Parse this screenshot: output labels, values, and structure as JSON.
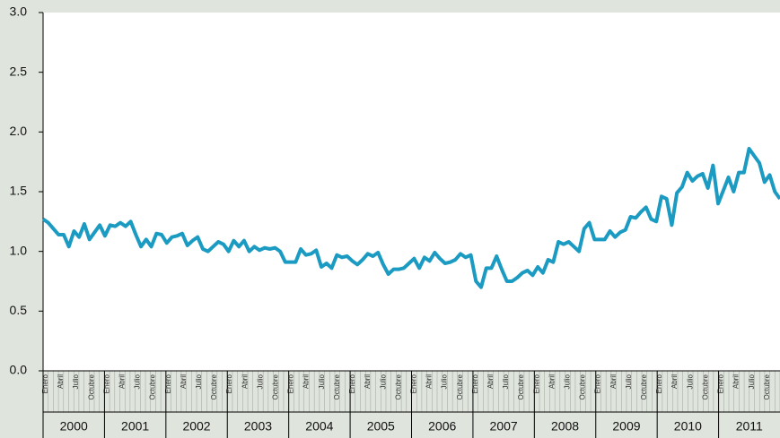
{
  "chart_data": {
    "type": "line",
    "categories": [
      "Enero",
      null,
      null,
      "Abril",
      null,
      null,
      "Julio",
      null,
      null,
      "Octubre",
      null,
      null,
      "Enero",
      null,
      null,
      "Abril",
      null,
      null,
      "Julio",
      null,
      null,
      "Octubre",
      null,
      null,
      "Enero",
      null,
      null,
      "Abril",
      null,
      null,
      "Julio",
      null,
      null,
      "Octubre",
      null,
      null,
      "Enero",
      null,
      null,
      "Abril",
      null,
      null,
      "Julio",
      null,
      null,
      "Octubre",
      null,
      null,
      "Enero",
      null,
      null,
      "Abril",
      null,
      null,
      "Julio",
      null,
      null,
      "Octubre",
      null,
      null,
      "Enero",
      null,
      null,
      "Abril",
      null,
      null,
      "Julio",
      null,
      null,
      "Octubre",
      null,
      null,
      "Enero",
      null,
      null,
      "Abril",
      null,
      null,
      "Julio",
      null,
      null,
      "Octubre",
      null,
      null,
      "Enero",
      null,
      null,
      "Abril",
      null,
      null,
      "Julio",
      null,
      null,
      "Octubre",
      null,
      null,
      "Enero",
      null,
      null,
      "Abril",
      null,
      null,
      "Julio",
      null,
      null,
      "Octubre",
      null,
      null,
      "Enero",
      null,
      null,
      "Abril",
      null,
      null,
      "Julio",
      null,
      null,
      "Octubre",
      null,
      null,
      "Enero",
      null,
      null,
      "Abril",
      null,
      null,
      "Julio",
      null,
      null,
      "Octubre",
      null,
      null,
      "Enero",
      null,
      null,
      "Abril",
      null,
      null,
      "Julio",
      null,
      null,
      "Octubre",
      null,
      null
    ],
    "year_groups": [
      "2000",
      "2001",
      "2002",
      "2003",
      "2004",
      "2005",
      "2006",
      "2007",
      "2008",
      "2009",
      "2010",
      "2011"
    ],
    "series": [
      {
        "color": "#1b9bc2",
        "values": [
          1.27,
          1.24,
          1.19,
          1.14,
          1.14,
          1.04,
          1.17,
          1.12,
          1.23,
          1.1,
          1.16,
          1.22,
          1.13,
          1.22,
          1.21,
          1.24,
          1.21,
          1.25,
          1.14,
          1.04,
          1.1,
          1.04,
          1.15,
          1.14,
          1.07,
          1.12,
          1.13,
          1.15,
          1.05,
          1.09,
          1.12,
          1.02,
          1.0,
          1.04,
          1.08,
          1.06,
          1.0,
          1.09,
          1.04,
          1.09,
          1.0,
          1.04,
          1.01,
          1.03,
          1.02,
          1.03,
          1.0,
          0.91,
          0.91,
          0.91,
          1.02,
          0.97,
          0.98,
          1.01,
          0.87,
          0.9,
          0.86,
          0.97,
          0.95,
          0.96,
          0.92,
          0.89,
          0.93,
          0.98,
          0.96,
          0.99,
          0.89,
          0.81,
          0.85,
          0.85,
          0.86,
          0.9,
          0.94,
          0.86,
          0.95,
          0.92,
          0.99,
          0.94,
          0.9,
          0.91,
          0.93,
          0.98,
          0.95,
          0.97,
          0.75,
          0.7,
          0.86,
          0.86,
          0.96,
          0.85,
          0.75,
          0.75,
          0.78,
          0.82,
          0.84,
          0.8,
          0.87,
          0.82,
          0.93,
          0.91,
          1.08,
          1.06,
          1.08,
          1.04,
          1.0,
          1.19,
          1.24,
          1.1,
          1.1,
          1.1,
          1.17,
          1.12,
          1.16,
          1.18,
          1.29,
          1.28,
          1.33,
          1.37,
          1.27,
          1.25,
          1.46,
          1.44,
          1.22,
          1.49,
          1.54,
          1.66,
          1.59,
          1.63,
          1.65,
          1.53,
          1.72,
          1.4,
          1.51,
          1.62,
          1.5,
          1.66,
          1.66,
          1.86,
          1.8,
          1.74,
          1.58,
          1.64,
          1.5,
          1.44
        ]
      }
    ],
    "ylim": [
      0,
      3
    ],
    "yticks": [
      {
        "value": 0,
        "label": "0.0"
      },
      0.5,
      {
        "value": 1,
        "label": "1.0"
      },
      1.5,
      {
        "value": 2,
        "label": "2.0"
      },
      2.5,
      {
        "value": 3,
        "label": "3.0"
      }
    ],
    "grid": false
  }
}
